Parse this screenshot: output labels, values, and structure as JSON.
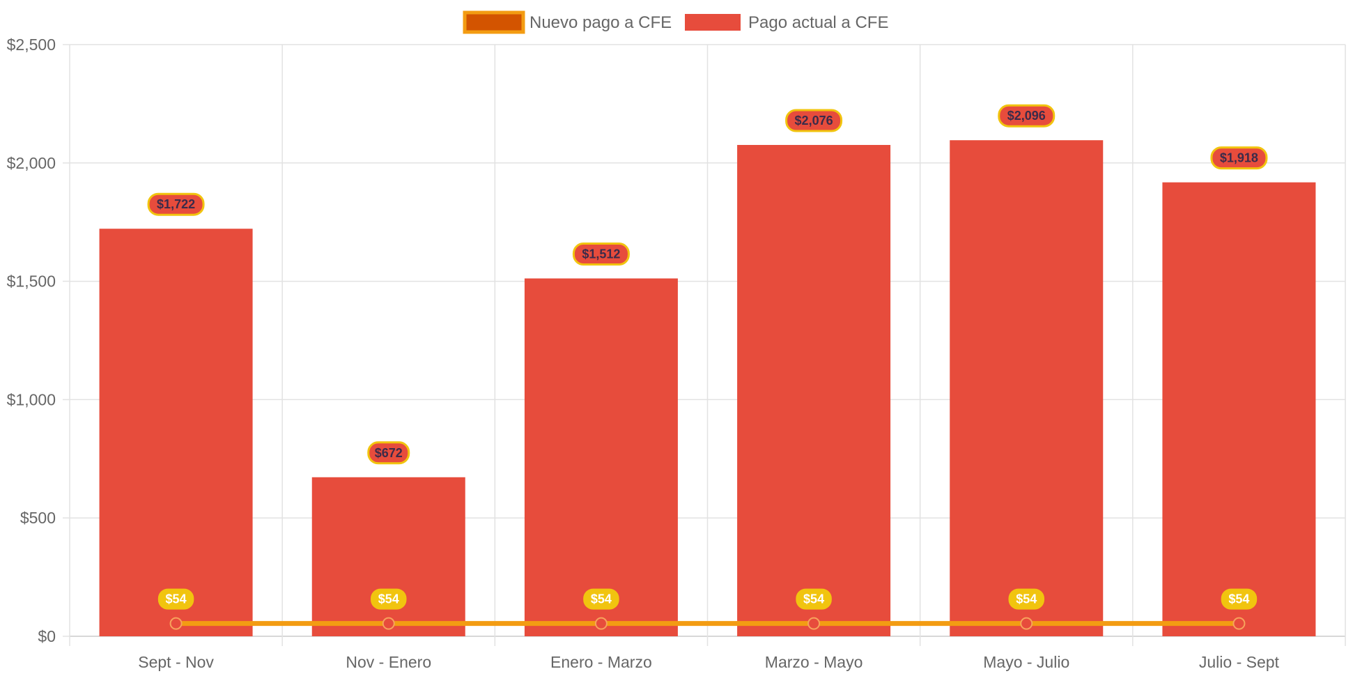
{
  "chart_data": {
    "type": "bar",
    "categories": [
      "Sept - Nov",
      "Nov - Enero",
      "Enero - Marzo",
      "Marzo - Mayo",
      "Mayo - Julio",
      "Julio - Sept"
    ],
    "series": [
      {
        "name": "Pago actual a CFE",
        "kind": "bar",
        "values": [
          1722,
          672,
          1512,
          2076,
          2096,
          1918
        ],
        "labels": [
          "$1,722",
          "$672",
          "$1,512",
          "$2,076",
          "$2,096",
          "$1,918"
        ],
        "color": "#e74c3c"
      },
      {
        "name": "Nuevo pago a CFE",
        "kind": "line",
        "values": [
          54,
          54,
          54,
          54,
          54,
          54
        ],
        "labels": [
          "$54",
          "$54",
          "$54",
          "$54",
          "$54",
          "$54"
        ],
        "color": "#f39c12",
        "fill": "#d35400"
      }
    ],
    "y_ticks": [
      0,
      500,
      1000,
      1500,
      2000,
      2500
    ],
    "y_tick_labels": [
      "$0",
      "$500",
      "$1,000",
      "$1,500",
      "$2,000",
      "$2,500"
    ],
    "ylim": [
      0,
      2500
    ],
    "legend_position": "top-center",
    "grid": true,
    "label_box_color": "#f1c40f"
  }
}
